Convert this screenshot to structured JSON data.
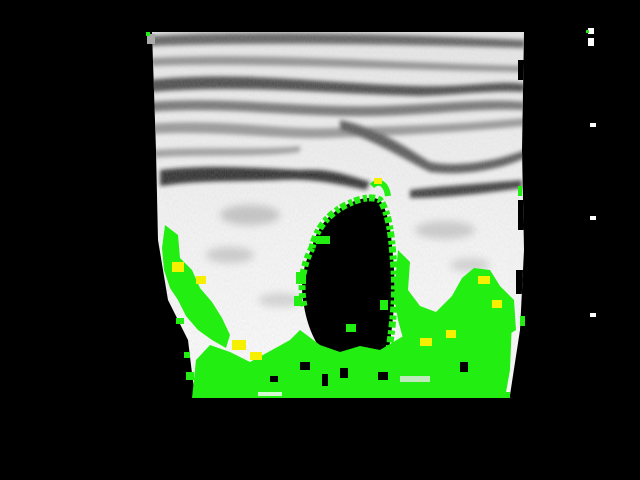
{
  "image": {
    "subject": "ultrasound-scan",
    "background_color": "#000000",
    "tissue_color": "#f2f2f2",
    "overlay_color_primary": "#22ee11",
    "overlay_color_secondary": "#f4f000",
    "depth_marker_color": "#ffffff",
    "depth_marker_count": 4
  }
}
